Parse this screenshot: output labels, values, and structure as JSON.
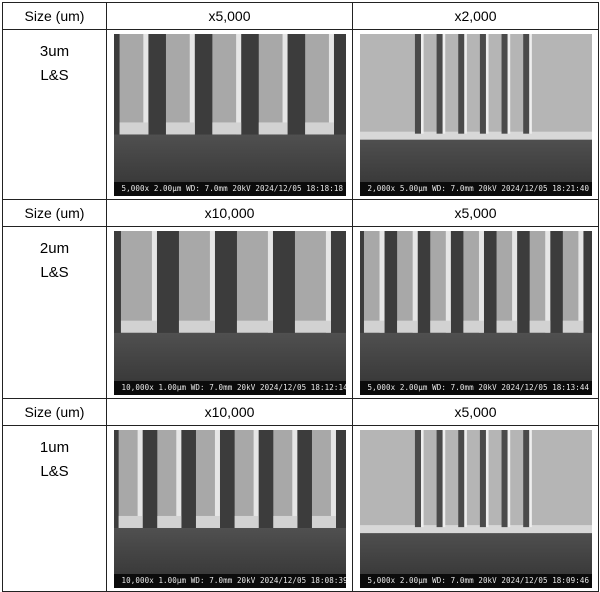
{
  "rows": [
    {
      "size_header": "Size (um)",
      "label_line1": "3um",
      "label_line2": "L&S",
      "images": [
        {
          "mag_header": "x5,000",
          "mag": "5,000x",
          "scale": "2.00",
          "unit": "μm",
          "wd": "WD: 7.0mm",
          "kv": "20kV",
          "datetime": "2024/12/05 18:18:18",
          "mode": "S",
          "lines": 5,
          "trench": "tall"
        },
        {
          "mag_header": "x2,000",
          "mag": "2,000x",
          "scale": "5.00",
          "unit": "μm",
          "wd": "WD: 7.0mm",
          "kv": "20kV",
          "datetime": "2024/12/05 18:21:40",
          "mode": "S",
          "lines": 6,
          "trench": "thin"
        }
      ]
    },
    {
      "size_header": "Size (um)",
      "label_line1": "2um",
      "label_line2": "L&S",
      "images": [
        {
          "mag_header": "x10,000",
          "mag": "10,000x",
          "scale": "1.00",
          "unit": "μm",
          "wd": "WD: 7.0mm",
          "kv": "20kV",
          "datetime": "2024/12/05 18:12:14",
          "mode": "S",
          "lines": 4,
          "trench": "tall"
        },
        {
          "mag_header": "x5,000",
          "mag": "5,000x",
          "scale": "2.00",
          "unit": "μm",
          "wd": "WD: 7.0mm",
          "kv": "20kV",
          "datetime": "2024/12/05 18:13:44",
          "mode": "S",
          "lines": 7,
          "trench": "tall"
        }
      ]
    },
    {
      "size_header": "Size (um)",
      "label_line1": "1um",
      "label_line2": "L&S",
      "images": [
        {
          "mag_header": "x10,000",
          "mag": "10,000x",
          "scale": "1.00",
          "unit": "μm",
          "wd": "WD: 7.0mm",
          "kv": "20kV",
          "datetime": "2024/12/05 18:08:39",
          "mode": "S",
          "lines": 6,
          "trench": "tall"
        },
        {
          "mag_header": "x5,000",
          "mag": "5,000x",
          "scale": "2.00",
          "unit": "μm",
          "wd": "WD: 7.0mm",
          "kv": "20kV",
          "datetime": "2024/12/05 18:09:46",
          "mode": "S",
          "lines": 6,
          "trench": "thin"
        }
      ]
    }
  ]
}
